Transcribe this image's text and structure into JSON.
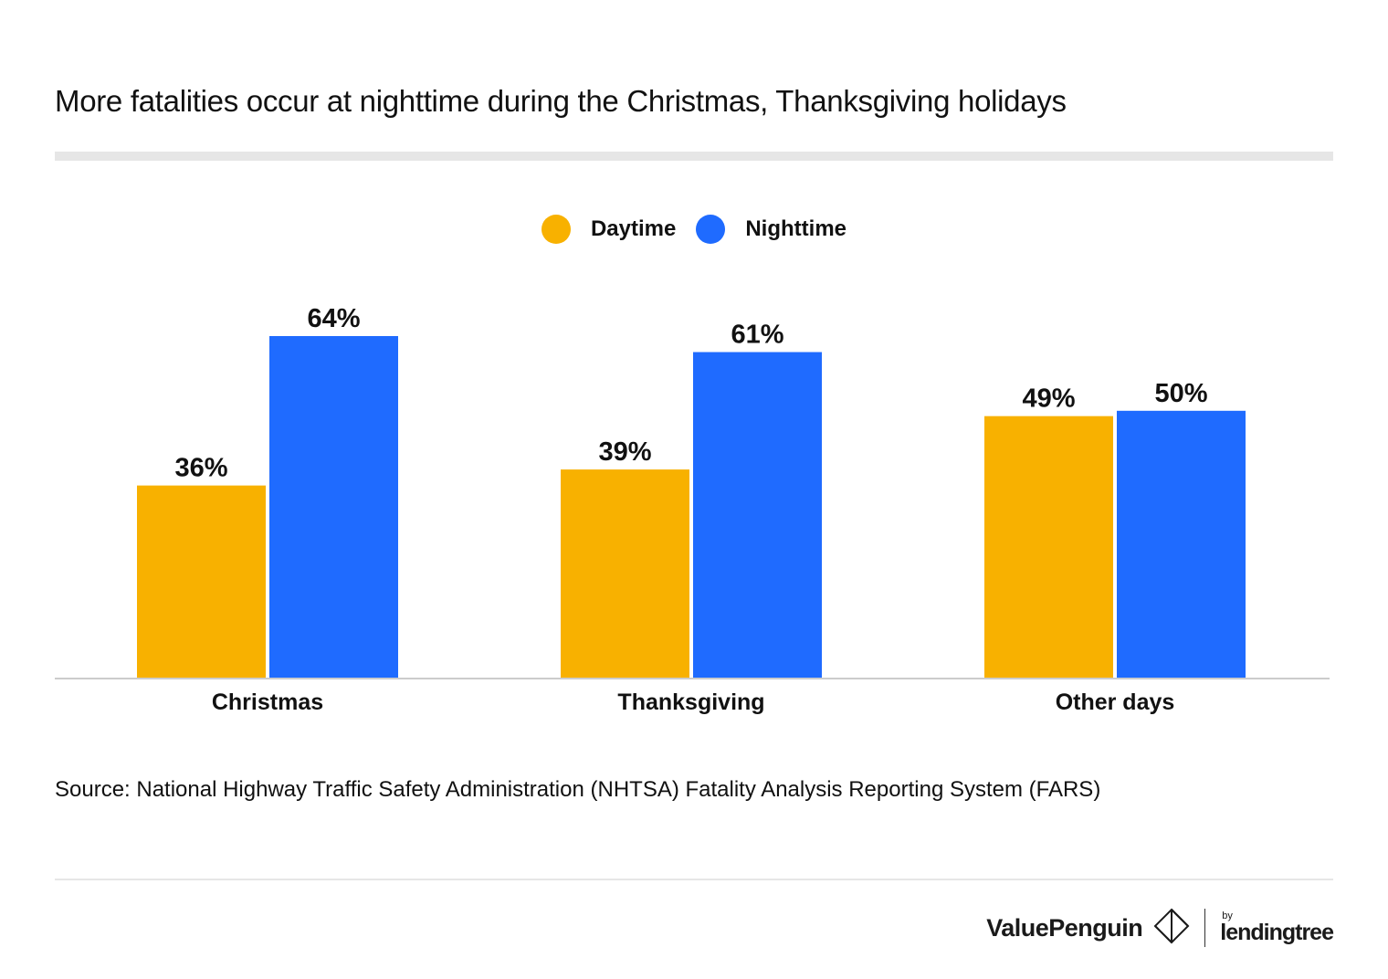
{
  "title": "More fatalities occur at nighttime during the Christmas, Thanksgiving holidays",
  "legend": [
    {
      "label": "Daytime",
      "color": "#F8B100"
    },
    {
      "label": "Nighttime",
      "color": "#1F6BFF"
    }
  ],
  "chart_data": {
    "type": "bar",
    "title": "More fatalities occur at nighttime during the Christmas, Thanksgiving holidays",
    "categories": [
      "Christmas",
      "Thanksgiving",
      "Other days"
    ],
    "series": [
      {
        "name": "Daytime",
        "values": [
          36,
          39,
          49
        ],
        "labels": [
          "36%",
          "39%",
          "49%"
        ],
        "color": "#F8B100"
      },
      {
        "name": "Nighttime",
        "values": [
          64,
          61,
          50
        ],
        "labels": [
          "64%",
          "61%",
          "50%"
        ],
        "color": "#1F6BFF"
      }
    ],
    "xlabel": "",
    "ylabel": "",
    "ylim": [
      0,
      64
    ],
    "grid": false,
    "legend_position": "top-center"
  },
  "source": "Source: National Highway Traffic Safety Administration (NHTSA) Fatality Analysis Reporting System (FARS)",
  "brand": {
    "valuepenguin": "ValuePenguin",
    "by": "by",
    "lendingtree": "lendingtree"
  }
}
